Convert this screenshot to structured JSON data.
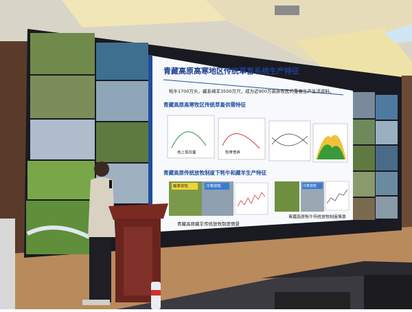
{
  "slide": {
    "title": "青藏高原高寒地区传统草畜系统生产特征",
    "intro": "牦牛1700万头，藏系绵羊3500万只，成为近900万高原牧民的重要生产生活资料。",
    "section_1": {
      "heading": "青藏高原高寒牧区传统草畜供需特征",
      "chart_labels": [
        "地上现存量",
        "牧草营养"
      ]
    },
    "section_2": {
      "heading": "青藏高原传统放牧制度下牦牛和藏羊生产特征",
      "panel_tags": [
        "暖季放牧",
        "冷季放牧",
        "冷季放牧"
      ],
      "captions": [
        "青藏高原藏羊传统放牧制度情景",
        "青藏高原牦牛传统放牧制度情景"
      ]
    }
  }
}
